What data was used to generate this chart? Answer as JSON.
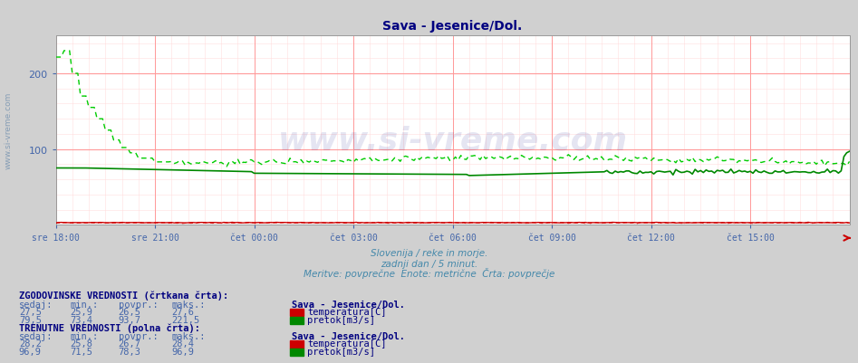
{
  "title": "Sava - Jesenice/Dol.",
  "title_color": "#000080",
  "bg_color": "#d0d0d0",
  "plot_bg_color": "#ffffff",
  "grid_color_major": "#ff9999",
  "grid_color_minor": "#ffdddd",
  "subtitle_lines": [
    "Slovenija / reke in morje.",
    "zadnji dan / 5 minut.",
    "Meritve: povprečne  Enote: metrične  Črta: povprečje"
  ],
  "subtitle_color": "#4488aa",
  "ylabel_color": "#4466aa",
  "tick_label_color": "#4466aa",
  "watermark_text": "www.si-vreme.com",
  "watermark_color": "#000080",
  "x_tick_labels": [
    "sre 18:00",
    "sre 21:00",
    "čet 00:00",
    "čet 03:00",
    "čet 06:00",
    "čet 09:00",
    "čet 12:00",
    "čet 15:00"
  ],
  "x_tick_positions": [
    0,
    36,
    72,
    108,
    144,
    180,
    216,
    252
  ],
  "n_points": 289,
  "ylim": [
    0,
    250
  ],
  "yticks": [
    100,
    200
  ],
  "arrow_color": "#cc0000",
  "left_label_text": "www.si-vreme.com",
  "table_text_color": "#000080",
  "table_value_color": "#4466aa",
  "table_header_color": "#000080",
  "legend_color": "#000080",
  "info_block": {
    "historical_label": "ZGODOVINSKE VREDNOSTI (črtkana črta):",
    "current_label": "TRENUTNE VREDNOSTI (polna črta):",
    "headers": [
      "sedaj:",
      "min.:",
      "povpr.:",
      "maks.:"
    ],
    "historical_temp": {
      "sedaj": "27,5",
      "min": "25,9",
      "povpr": "26,5",
      "maks": "27,6",
      "name": "temperatura[C]",
      "color": "#cc0000"
    },
    "historical_flow": {
      "sedaj": "79,5",
      "min": "73,4",
      "povpr": "93,7",
      "maks": "221,5",
      "name": "pretok[m3/s]",
      "color": "#008800"
    },
    "current_temp": {
      "sedaj": "28,2",
      "min": "25,8",
      "povpr": "26,7",
      "maks": "28,4",
      "name": "temperatura[C]",
      "color": "#cc0000"
    },
    "current_flow": {
      "sedaj": "96,9",
      "min": "71,5",
      "povpr": "78,3",
      "maks": "96,9",
      "name": "pretok[m3/s]",
      "color": "#008800"
    },
    "station": "Sava - Jesenice/Dol."
  }
}
